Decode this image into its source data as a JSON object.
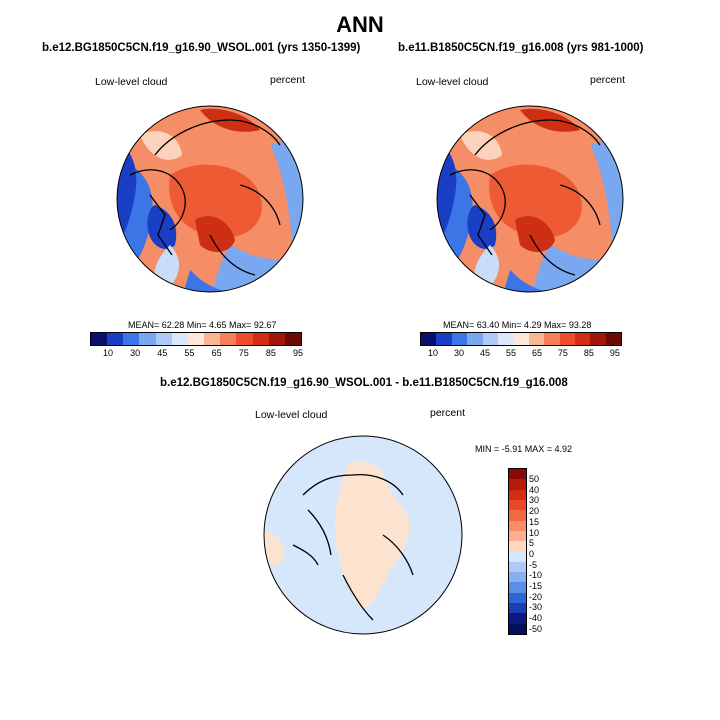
{
  "title": "ANN",
  "panels": [
    {
      "case": "b.e12.BG1850C5CN.f19_g16.90_WSOL.001 (yrs 1350-1399)",
      "variable": "Low-level cloud",
      "units": "percent",
      "stats": "MEAN=  62.28  Min=   4.65  Max=  92.67"
    },
    {
      "case": "b.e11.B1850C5CN.f19_g16.008 (yrs 981-1000)",
      "variable": "Low-level cloud",
      "units": "percent",
      "stats": "MEAN=  63.40  Min=   4.29  Max=  93.28"
    }
  ],
  "abs_colorbar": {
    "labels": [
      "10",
      "30",
      "45",
      "55",
      "65",
      "75",
      "85",
      "95"
    ],
    "colors": [
      "#08106b",
      "#1a3fc4",
      "#3b75e6",
      "#7aa8f0",
      "#aecbf6",
      "#dbe8fb",
      "#fde7d8",
      "#f9b693",
      "#f47f58",
      "#ec4d2c",
      "#d22e14",
      "#a01608",
      "#6e0a03"
    ]
  },
  "diff_panel": {
    "title": "b.e12.BG1850C5CN.f19_g16.90_WSOL.001 - b.e11.B1850C5CN.f19_g16.008",
    "variable": "Low-level cloud",
    "units": "percent",
    "minmax": "MIN =  -5.91 MAX =   4.92"
  },
  "diff_colorbar": {
    "labels": [
      "50",
      "40",
      "30",
      "20",
      "15",
      "10",
      "5",
      "0",
      "-5",
      "-10",
      "-15",
      "-20",
      "-30",
      "-40",
      "-50"
    ],
    "colors": [
      "#8a0a03",
      "#b31a08",
      "#d52d14",
      "#e84a28",
      "#f26a44",
      "#f78d66",
      "#fab08e",
      "#fdd8c2",
      "#d6e6fb",
      "#aec9f4",
      "#87aeee",
      "#5a8fe6",
      "#2f66d6",
      "#1640b3",
      "#0a1a80",
      "#05105a"
    ]
  },
  "map_colors": {
    "deep_blue": "#1a3fc4",
    "mid_blue": "#3b75e6",
    "light_blue": "#7aa8f0",
    "pale_blue": "#c9dcf8",
    "pale_red": "#fbd2bd",
    "light_red": "#f58e66",
    "mid_red": "#ee5a33",
    "dark_red": "#cc2f12",
    "diff_blue": "#d6e6fb",
    "diff_peach": "#fce3cf"
  }
}
